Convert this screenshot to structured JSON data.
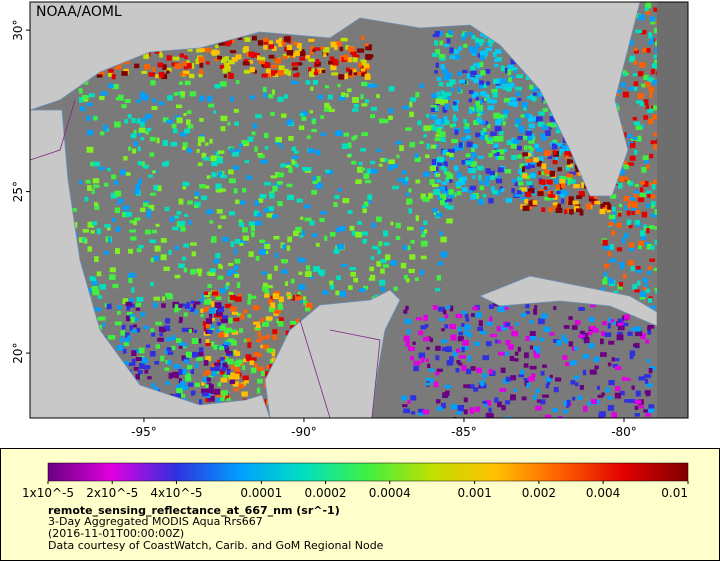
{
  "map": {
    "watermark": "NOAA/AOML",
    "xlim": [
      -98.56,
      -78
    ],
    "ylim": [
      17.99,
      30.87
    ],
    "xticks": [
      {
        "value": -95,
        "label": "-95°"
      },
      {
        "value": -90,
        "label": "-90°"
      },
      {
        "value": -85,
        "label": "-85°"
      },
      {
        "value": -80,
        "label": "-80°"
      }
    ],
    "yticks": [
      {
        "value": 30,
        "label": "30°"
      },
      {
        "value": 25,
        "label": "25°"
      },
      {
        "value": 20,
        "label": "20°"
      }
    ]
  },
  "legend": {
    "scale": "log",
    "lim": [
      1e-05,
      0.01
    ],
    "colors": [
      "#6a0080",
      "#e000e0",
      "#3030e0",
      "#00a0ff",
      "#00e0c0",
      "#40f040",
      "#c0e000",
      "#ffc000",
      "#ff6000",
      "#e00000",
      "#800000"
    ],
    "ticks": [
      {
        "value": 1e-05,
        "label": "1x10^-5"
      },
      {
        "value": 2e-05,
        "label": "2x10^-5"
      },
      {
        "value": 4e-05,
        "label": "4x10^-5"
      },
      0.0001,
      0.0002,
      0.0004,
      0.001,
      0.002,
      0.004,
      0.01
    ],
    "variable": "remote_sensing_reflectance_at_667_nm (sr^-1)",
    "title": "3-Day Aggregated MODIS Aqua Rrs667",
    "time": "(2016-11-01T00:00:00Z)",
    "credit": "Data courtesy of CoastWatch, Carib. and GoM Regional Node"
  }
}
